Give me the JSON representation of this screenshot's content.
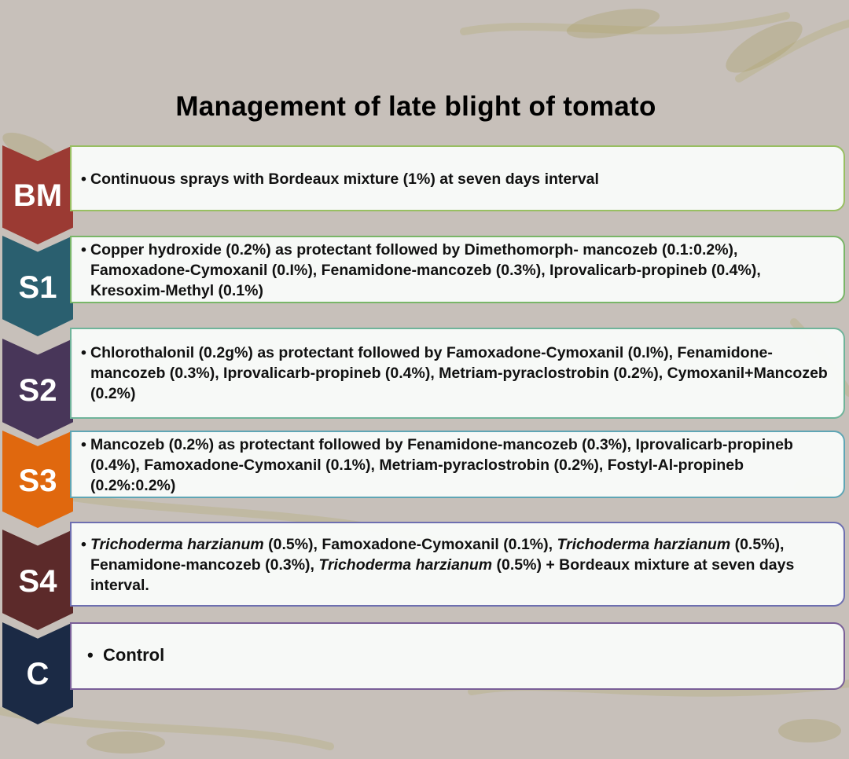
{
  "title": "Management of late blight of tomato",
  "rows": [
    {
      "label": "BM",
      "color": "#9b3a33",
      "border": "#98bf62",
      "text": "Continuous sprays with Bordeaux mixture (1%) at seven days interval"
    },
    {
      "label": "S1",
      "color": "#2a5f6f",
      "border": "#79b668",
      "text": "Copper hydroxide (0.2%) as protectant followed by Dimethomorph- mancozeb (0.1:0.2%), Famoxadone-Cymoxanil (0.I%), Fenamidone-mancozeb (0.3%), Iprovalicarb-propineb (0.4%), Kresoxim-Methyl (0.1%)"
    },
    {
      "label": "S2",
      "color": "#483659",
      "border": "#6fb49a",
      "text": "Chlorothalonil (0.2g%) as protectant followed by Famoxadone-Cymoxanil (0.I%), Fenamidone-mancozeb (0.3%), Iprovalicarb-propineb (0.4%), Metriam-pyraclostrobin (0.2%), Cymoxanil+Mancozeb (0.2%)"
    },
    {
      "label": "S3",
      "color": "#e0680e",
      "border": "#5fa6b5",
      "text": "Mancozeb (0.2%) as protectant followed by Fenamidone-mancozeb (0.3%), Iprovalicarb-propineb (0.4%), Famoxadone-Cymoxanil (0.1%), Metriam-pyraclostrobin (0.2%), Fostyl-Al-propineb (0.2%:0.2%)"
    },
    {
      "label": "S4",
      "color": "#5c2a2a",
      "border": "#6e6fb0",
      "parts": [
        {
          "t": "Trichoderma harzianum",
          "i": true
        },
        {
          "t": " (0.5%), Famoxadone-Cymoxanil (0.1%), ",
          "i": false
        },
        {
          "t": "Trichoderma harzianum",
          "i": true
        },
        {
          "t": " (0.5%), Fenamidone-mancozeb (0.3%), ",
          "i": false
        },
        {
          "t": "Trichoderma harzianum",
          "i": true
        },
        {
          "t": " (0.5%) + Bordeaux mixture at seven days interval.",
          "i": false
        }
      ]
    },
    {
      "label": "C",
      "color": "#1b2a45",
      "border": "#7a5f98",
      "text": "Control"
    }
  ]
}
